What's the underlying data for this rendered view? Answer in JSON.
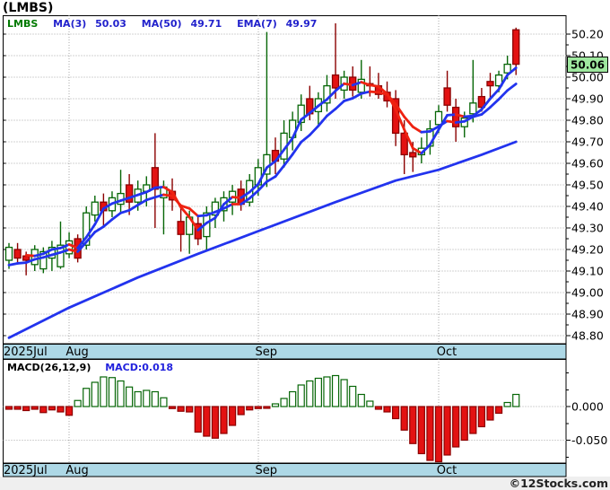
{
  "title": "(LMBS)",
  "watermark": "©12Stocks.com",
  "last_price_tag": "50.06",
  "main_legend": {
    "symbol": "LMBS",
    "items": [
      {
        "label": "MA(3)",
        "value": "50.03"
      },
      {
        "label": "MA(50)",
        "value": "49.71"
      },
      {
        "label": "EMA(7)",
        "value": "49.97"
      }
    ]
  },
  "macd_legend": {
    "label": "MACD(26,12,9)",
    "value": "MACD:0.018"
  },
  "colors": {
    "up_fill": "#ffffff",
    "up_border": "#066606",
    "down_fill": "#e31212",
    "down_border": "#8b0000",
    "ma_rising": "#2233ee",
    "ma_falling": "#ee2211",
    "ma50": "#2233ee",
    "grid": "#a8a8a8",
    "band_bg": "#add8e6",
    "tag_bg": "#9fe89f",
    "legend_symbol": "#007a00",
    "legend_blue": "#2222cc",
    "macd_value_blue": "#2222dd",
    "panel_border": "#000000"
  },
  "months": [
    {
      "label": "2025Jul",
      "index": 0
    },
    {
      "label": "Aug",
      "index": 7
    },
    {
      "label": "Sep",
      "index": 29
    },
    {
      "label": "Oct",
      "index": 50
    }
  ],
  "chart_data": [
    {
      "type": "candlestick",
      "title": "LMBS daily price with MA(3), MA(50), EMA(7)",
      "line_color_rule": "blue when rising, red when falling",
      "price_axis": {
        "min": 48.8,
        "max": 50.2,
        "tick_step": 0.1,
        "minor_step": 0.05
      },
      "last_price": 50.06,
      "ma3_last": 50.03,
      "ma50_last": 49.71,
      "ema7_last": 49.97,
      "ma50_anchors": [
        [
          0,
          48.79
        ],
        [
          7,
          48.93
        ],
        [
          15,
          49.07
        ],
        [
          22,
          49.18
        ],
        [
          30,
          49.3
        ],
        [
          38,
          49.42
        ],
        [
          45,
          49.52
        ],
        [
          50,
          49.57
        ],
        [
          55,
          49.64
        ],
        [
          59,
          49.7
        ]
      ],
      "ema7_seed": 49.1,
      "candles_ohlc": [
        [
          49.15,
          49.23,
          49.11,
          49.21
        ],
        [
          49.2,
          49.23,
          49.14,
          49.16
        ],
        [
          49.17,
          49.19,
          49.08,
          49.15
        ],
        [
          49.13,
          49.22,
          49.1,
          49.2
        ],
        [
          49.11,
          49.21,
          49.09,
          49.19
        ],
        [
          49.16,
          49.24,
          49.1,
          49.21
        ],
        [
          49.12,
          49.33,
          49.11,
          49.22
        ],
        [
          49.18,
          49.28,
          49.16,
          49.24
        ],
        [
          49.25,
          49.27,
          49.14,
          49.16
        ],
        [
          49.22,
          49.4,
          49.2,
          49.37
        ],
        [
          49.36,
          49.45,
          49.33,
          49.42
        ],
        [
          49.42,
          49.46,
          49.3,
          49.38
        ],
        [
          49.38,
          49.47,
          49.35,
          49.44
        ],
        [
          49.41,
          49.57,
          49.37,
          49.46
        ],
        [
          49.5,
          49.55,
          49.36,
          49.42
        ],
        [
          49.42,
          49.52,
          49.38,
          49.48
        ],
        [
          49.47,
          49.54,
          49.4,
          49.5
        ],
        [
          49.58,
          49.74,
          49.3,
          49.48
        ],
        [
          49.44,
          49.52,
          49.27,
          49.49
        ],
        [
          49.47,
          49.53,
          49.38,
          49.43
        ],
        [
          49.33,
          49.4,
          49.19,
          49.27
        ],
        [
          49.27,
          49.38,
          49.18,
          49.35
        ],
        [
          49.32,
          49.36,
          49.22,
          49.25
        ],
        [
          49.26,
          49.4,
          49.2,
          49.37
        ],
        [
          49.36,
          49.44,
          49.3,
          49.42
        ],
        [
          49.38,
          49.47,
          49.33,
          49.44
        ],
        [
          49.42,
          49.5,
          49.36,
          49.47
        ],
        [
          49.48,
          49.52,
          49.38,
          49.41
        ],
        [
          49.42,
          49.55,
          49.4,
          49.52
        ],
        [
          49.5,
          49.62,
          49.45,
          49.58
        ],
        [
          49.55,
          50.21,
          49.49,
          49.64
        ],
        [
          49.66,
          49.72,
          49.55,
          49.61
        ],
        [
          49.62,
          49.8,
          49.58,
          49.74
        ],
        [
          49.72,
          49.84,
          49.66,
          49.8
        ],
        [
          49.79,
          49.92,
          49.75,
          49.87
        ],
        [
          49.9,
          49.96,
          49.8,
          49.83
        ],
        [
          49.84,
          49.93,
          49.78,
          49.9
        ],
        [
          49.88,
          50.01,
          49.84,
          49.96
        ],
        [
          50.01,
          50.25,
          49.9,
          49.95
        ],
        [
          49.94,
          50.03,
          49.9,
          50.0
        ],
        [
          50.0,
          50.05,
          49.91,
          49.94
        ],
        [
          49.93,
          50.08,
          49.9,
          49.99
        ],
        [
          49.97,
          50.05,
          49.91,
          49.96
        ],
        [
          49.96,
          50.02,
          49.9,
          49.92
        ],
        [
          49.93,
          49.98,
          49.86,
          49.89
        ],
        [
          49.9,
          49.94,
          49.68,
          49.74
        ],
        [
          49.74,
          49.8,
          49.55,
          49.64
        ],
        [
          49.65,
          49.7,
          49.56,
          49.63
        ],
        [
          49.64,
          49.72,
          49.6,
          49.67
        ],
        [
          49.68,
          49.8,
          49.64,
          49.76
        ],
        [
          49.78,
          49.87,
          49.74,
          49.84
        ],
        [
          49.95,
          50.03,
          49.84,
          49.87
        ],
        [
          49.86,
          49.9,
          49.7,
          49.77
        ],
        [
          49.77,
          49.84,
          49.72,
          49.81
        ],
        [
          49.83,
          50.08,
          49.79,
          49.88
        ],
        [
          49.91,
          49.95,
          49.84,
          49.86
        ],
        [
          49.98,
          50.02,
          49.9,
          49.96
        ],
        [
          49.96,
          50.03,
          49.93,
          50.01
        ],
        [
          50.02,
          50.1,
          49.99,
          50.06
        ],
        [
          50.22,
          50.23,
          50.01,
          50.06
        ]
      ]
    },
    {
      "type": "bar",
      "title": "MACD(26,12,9) histogram",
      "last_value": 0.018,
      "axis_ticks": [
        {
          "label": "0.000",
          "value": 0
        },
        {
          "label": "-0.050",
          "value": -0.05
        }
      ],
      "minor_tick_values": [
        0.05,
        0.025,
        -0.025,
        -0.075
      ],
      "values": [
        -0.004,
        -0.004,
        -0.006,
        -0.004,
        -0.009,
        -0.005,
        -0.008,
        -0.013,
        0.009,
        0.027,
        0.036,
        0.044,
        0.043,
        0.038,
        0.029,
        0.022,
        0.024,
        0.022,
        0.013,
        -0.003,
        -0.007,
        -0.008,
        -0.038,
        -0.044,
        -0.047,
        -0.04,
        -0.028,
        -0.012,
        -0.005,
        -0.003,
        -0.002,
        0.004,
        0.012,
        0.022,
        0.032,
        0.038,
        0.042,
        0.044,
        0.046,
        0.04,
        0.03,
        0.018,
        0.008,
        -0.004,
        -0.008,
        -0.018,
        -0.035,
        -0.055,
        -0.07,
        -0.08,
        -0.082,
        -0.072,
        -0.06,
        -0.05,
        -0.04,
        -0.03,
        -0.02,
        -0.01,
        0.006,
        0.018
      ]
    }
  ]
}
